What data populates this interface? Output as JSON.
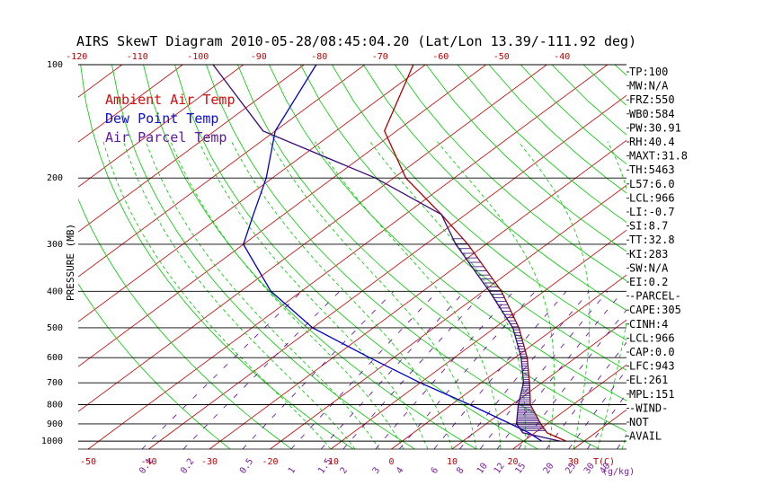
{
  "chart_data": {
    "type": "line",
    "title": "AIRS SkewT Diagram 2010-05-28/08:45:04.20 (Lat/Lon 13.39/-111.92 deg)",
    "ylabel": "PRESSURE (MB)",
    "y_scale": "log",
    "ylim": [
      1050,
      100
    ],
    "pressure_ticks": [
      100,
      200,
      300,
      400,
      500,
      600,
      700,
      800,
      900,
      1000
    ],
    "pressure_tick_labels": [
      "100",
      "200",
      "300",
      "400",
      "500",
      "600",
      "700",
      "800",
      "900",
      "1000"
    ],
    "top_temp_ticks": [
      -120,
      -110,
      -100,
      -90,
      -80,
      -70,
      -60,
      -50,
      -40
    ],
    "top_temp_tick_labels": [
      "-120",
      "-110",
      "-100",
      "-90",
      "-80",
      "-70",
      "-60",
      "-50",
      "-40"
    ],
    "bottom_temp_ticks": [
      -50,
      -40,
      -30,
      -20,
      -10,
      0,
      10,
      20,
      30
    ],
    "bottom_temp_tick_labels": [
      "-50",
      "-40",
      "-30",
      "-20",
      "-10",
      "0",
      "10",
      "20",
      "30"
    ],
    "bottom_unit_label": "T(C)",
    "mixing_ratio_labels": [
      "0.1",
      "0.2",
      "0.5",
      "1",
      "1.5",
      "2",
      "3",
      "4",
      "6",
      "8",
      "10",
      "12",
      "15",
      "20",
      "25",
      "30",
      "40"
    ],
    "mixing_ratio_unit": "(g/kg)",
    "legend": [
      {
        "label": "Ambient Air Temp",
        "color": "#d01010"
      },
      {
        "label": "Dew Point Temp",
        "color": "#1010d0"
      },
      {
        "label": "Air Parcel Temp",
        "color": "#5a1a9a"
      }
    ],
    "series": [
      {
        "name": "Ambient Air Temp",
        "color": "#b00000",
        "points": [
          [
            100,
            -82
          ],
          [
            150,
            -72
          ],
          [
            200,
            -58
          ],
          [
            250,
            -44
          ],
          [
            300,
            -33
          ],
          [
            400,
            -17
          ],
          [
            500,
            -6
          ],
          [
            600,
            2
          ],
          [
            700,
            8
          ],
          [
            800,
            13
          ],
          [
            900,
            19
          ],
          [
            950,
            22
          ],
          [
            1000,
            27
          ]
        ]
      },
      {
        "name": "Dew Point Temp",
        "color": "#0000cc",
        "points": [
          [
            100,
            -98
          ],
          [
            150,
            -90
          ],
          [
            200,
            -81
          ],
          [
            250,
            -75
          ],
          [
            300,
            -70
          ],
          [
            400,
            -55
          ],
          [
            500,
            -40
          ],
          [
            600,
            -24
          ],
          [
            700,
            -10
          ],
          [
            800,
            3
          ],
          [
            900,
            14
          ],
          [
            950,
            19
          ],
          [
            1000,
            23
          ]
        ]
      },
      {
        "name": "Air Parcel Temp",
        "color": "#3a0a7a",
        "points": [
          [
            100,
            -115
          ],
          [
            150,
            -92
          ],
          [
            200,
            -63
          ],
          [
            250,
            -44
          ],
          [
            300,
            -35
          ],
          [
            400,
            -19
          ],
          [
            500,
            -7
          ],
          [
            600,
            1
          ],
          [
            700,
            7
          ],
          [
            800,
            11
          ],
          [
            900,
            15
          ],
          [
            950,
            18
          ],
          [
            1000,
            26
          ]
        ]
      }
    ],
    "indices": [
      "TP:100",
      "MW:N/A",
      "FRZ:550",
      "WB0:584",
      "PW:30.91",
      "RH:40.4",
      "MAXT:31.8",
      "TH:5463",
      "L57:6.0",
      "LCL:966",
      "LI:-0.7",
      "SI:8.7",
      "TT:32.8",
      "KI:283",
      "SW:N/A",
      "EI:0.2",
      "-PARCEL-",
      "CAPE:305",
      "CINH:4",
      "LCL:966",
      "CAP:0.0",
      "LFC:943",
      "EL:261",
      "MPL:151",
      "-WIND-",
      "NOT",
      "AVAIL"
    ],
    "colors": {
      "isotherm": "#c80000",
      "dry_adiabat": "#00c800",
      "moist_adiabat": "#00c800",
      "mixing_ratio": "#5a00a0",
      "isobar": "#000000"
    }
  }
}
